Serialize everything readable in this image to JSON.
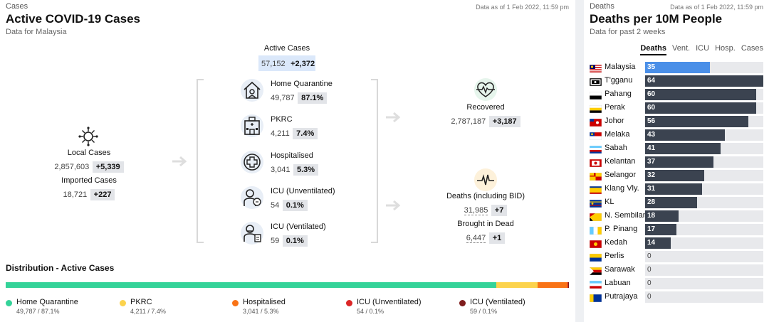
{
  "left": {
    "kicker": "Cases",
    "as_of": "Data as of 1 Feb 2022, 11:59 pm",
    "title": "Active COVID-19 Cases",
    "subtitle": "Data for Malaysia",
    "active_cases": {
      "label": "Active Cases",
      "value": "57,152",
      "delta": "+2,372"
    },
    "local_cases": {
      "label": "Local Cases",
      "value": "2,857,603",
      "delta": "+5,339"
    },
    "imported_cases": {
      "label": "Imported Cases",
      "value": "18,721",
      "delta": "+227"
    },
    "categories": [
      {
        "label": "Home Quarantine",
        "value": "49,787",
        "pct": "87.1%",
        "icon": "home-quarantine-icon"
      },
      {
        "label": "PKRC",
        "value": "4,211",
        "pct": "7.4%",
        "icon": "pkrc-building-icon"
      },
      {
        "label": "Hospitalised",
        "value": "3,041",
        "pct": "5.3%",
        "icon": "hospital-cross-icon"
      },
      {
        "label": "ICU (Unventilated)",
        "value": "54",
        "pct": "0.1%",
        "icon": "icu-unventilated-icon"
      },
      {
        "label": "ICU (Ventilated)",
        "value": "59",
        "pct": "0.1%",
        "icon": "icu-ventilated-icon"
      }
    ],
    "recovered": {
      "label": "Recovered",
      "value": "2,787,187",
      "delta": "+3,187"
    },
    "deaths": {
      "label": "Deaths (including BID)",
      "value": "31,985",
      "delta": "+7"
    },
    "bid": {
      "label": "Brought in Dead",
      "value": "6,447",
      "delta": "+1"
    },
    "distribution": {
      "title": "Distribution - Active Cases",
      "items": [
        {
          "name": "Home Quarantine",
          "detail": "49,787 / 87.1%",
          "color": "#34d399",
          "pct": 87.1
        },
        {
          "name": "PKRC",
          "detail": "4,211 / 7.4%",
          "color": "#fcd34d",
          "pct": 7.4
        },
        {
          "name": "Hospitalised",
          "detail": "3,041 / 5.3%",
          "color": "#f97316",
          "pct": 5.3
        },
        {
          "name": "ICU (Unventilated)",
          "detail": "54 / 0.1%",
          "color": "#dc2626",
          "pct": 0.1
        },
        {
          "name": "ICU (Ventilated)",
          "detail": "59 / 0.1%",
          "color": "#7f1d1d",
          "pct": 0.1
        }
      ]
    }
  },
  "right": {
    "kicker": "Deaths",
    "as_of": "Data as of 1 Feb 2022, 11:59 pm",
    "title": "Deaths per 10M People",
    "subtitle": "Data for past 2 weeks",
    "tabs": [
      "Deaths",
      "Vent.",
      "ICU",
      "Hosp.",
      "Cases"
    ],
    "active_tab": 0
  },
  "chart_data": [
    {
      "type": "bar",
      "orientation": "horizontal",
      "title": "Deaths per 10M People",
      "subtitle": "Data for past 2 weeks",
      "categories": [
        "Malaysia",
        "T'gganu",
        "Pahang",
        "Perak",
        "Johor",
        "Melaka",
        "Sabah",
        "Kelantan",
        "Selangor",
        "Klang Vly.",
        "KL",
        "N. Sembilan",
        "P. Pinang",
        "Kedah",
        "Perlis",
        "Sarawak",
        "Labuan",
        "Putrajaya"
      ],
      "values": [
        35,
        64,
        60,
        60,
        56,
        43,
        41,
        37,
        32,
        31,
        28,
        18,
        17,
        14,
        0,
        0,
        0,
        0
      ],
      "xlim": [
        0,
        64
      ],
      "highlight": "Malaysia",
      "colors": {
        "bar": "#3b4350",
        "highlight": "#4a8fe8",
        "track": "#e8e9ec"
      }
    },
    {
      "type": "bar",
      "orientation": "stacked-horizontal",
      "title": "Distribution - Active Cases",
      "categories": [
        "Home Quarantine",
        "PKRC",
        "Hospitalised",
        "ICU (Unventilated)",
        "ICU (Ventilated)"
      ],
      "values": [
        87.1,
        7.4,
        5.3,
        0.1,
        0.1
      ],
      "colors": [
        "#34d399",
        "#fcd34d",
        "#f97316",
        "#dc2626",
        "#7f1d1d"
      ]
    }
  ]
}
